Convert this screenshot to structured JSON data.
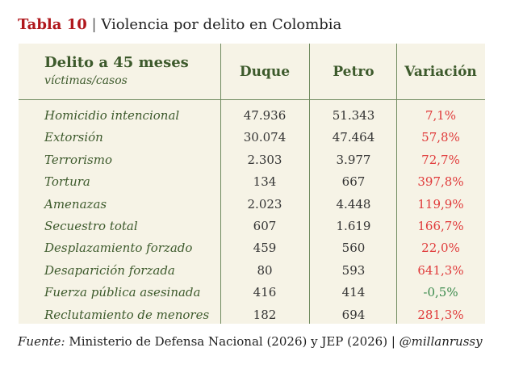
{
  "title": {
    "label": "Tabla 10",
    "separator": "|",
    "text": "Violencia por delito en Colombia"
  },
  "table": {
    "header": {
      "main": "Delito a 45 meses",
      "sub": "víctimas/casos",
      "col_duque": "Duque",
      "col_petro": "Petro",
      "col_var": "Variación"
    },
    "rows": [
      {
        "name": "Homicidio intencional",
        "duque": "47.936",
        "petro": "51.343",
        "var": "7,1%"
      },
      {
        "name": "Extorsión",
        "duque": "30.074",
        "petro": "47.464",
        "var": "57,8%"
      },
      {
        "name": "Terrorismo",
        "duque": "2.303",
        "petro": "3.977",
        "var": "72,7%"
      },
      {
        "name": "Tortura",
        "duque": "134",
        "petro": "667",
        "var": "397,8%"
      },
      {
        "name": "Amenazas",
        "duque": "2.023",
        "petro": "4.448",
        "var": "119,9%"
      },
      {
        "name": "Secuestro total",
        "duque": "607",
        "petro": "1.619",
        "var": "166,7%"
      },
      {
        "name": "Desplazamiento forzado",
        "duque": "459",
        "petro": "560",
        "var": "22,0%"
      },
      {
        "name": "Desaparición forzada",
        "duque": "80",
        "petro": "593",
        "var": "641,3%"
      },
      {
        "name": "Fuerza pública asesinada",
        "duque": "416",
        "petro": "414",
        "var": "-0,5%"
      },
      {
        "name": "Reclutamiento de menores",
        "duque": "182",
        "petro": "694",
        "var": "281,3%"
      }
    ]
  },
  "footer": {
    "label": "Fuente:",
    "text": "Ministerio de Defensa Nacional (2026) y JEP (2026) | ",
    "handle": "@millanrussy"
  },
  "colors": {
    "title_red": "#b0181d",
    "header_green": "#3d5a2c",
    "increase_red": "#e03a3a",
    "decrease_green": "#3a8a4c",
    "table_background": "#f6f3e6"
  }
}
